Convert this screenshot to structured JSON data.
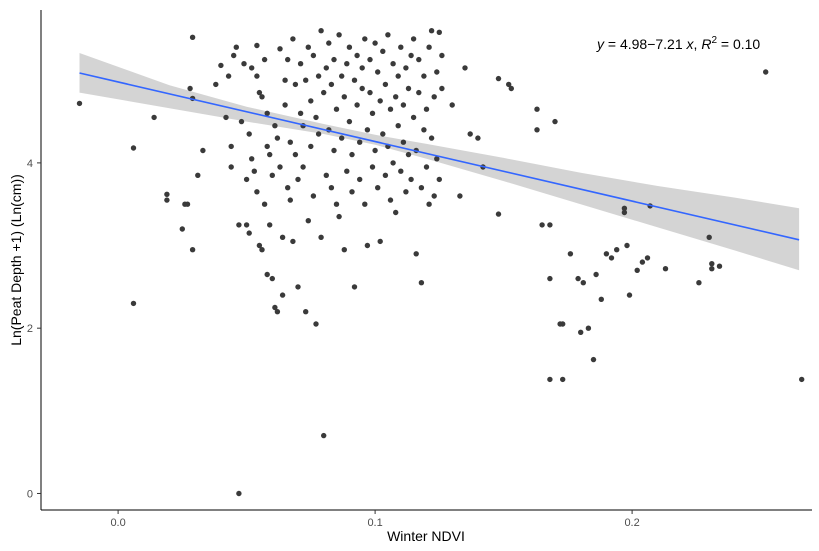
{
  "chart_data": {
    "type": "scatter",
    "xlabel": "Winter NDVI",
    "ylabel": "Ln(Peat Depth +1) (Ln(cm))",
    "xlim": [
      -0.03,
      0.27
    ],
    "ylim": [
      -0.2,
      5.85
    ],
    "x_ticks": [
      0.0,
      0.1,
      0.2
    ],
    "x_tick_labels": [
      "0.0",
      "0.1",
      "0.2"
    ],
    "y_ticks": [
      0,
      2,
      4
    ],
    "y_tick_labels": [
      "0",
      "2",
      "4"
    ],
    "grid": false,
    "annotation": {
      "y_symbol": "y",
      "equation_text": " = 4.98−7.21 ",
      "x_symbol": "x",
      "sep": ", ",
      "r_symbol": "R",
      "r_exponent": "2",
      "r2_text": " = 0.10"
    },
    "regression": {
      "intercept": 4.98,
      "slope": -7.21,
      "x_range": [
        -0.015,
        0.265
      ]
    },
    "confidence_band": [
      {
        "x": -0.015,
        "lo": 4.85,
        "hi": 5.33
      },
      {
        "x": 0.02,
        "lo": 4.66,
        "hi": 4.94
      },
      {
        "x": 0.05,
        "lo": 4.5,
        "hi": 4.68
      },
      {
        "x": 0.08,
        "lo": 4.35,
        "hi": 4.47
      },
      {
        "x": 0.1,
        "lo": 4.22,
        "hi": 4.34
      },
      {
        "x": 0.12,
        "lo": 4.05,
        "hi": 4.23
      },
      {
        "x": 0.15,
        "lo": 3.78,
        "hi": 4.06
      },
      {
        "x": 0.18,
        "lo": 3.5,
        "hi": 3.88
      },
      {
        "x": 0.21,
        "lo": 3.22,
        "hi": 3.72
      },
      {
        "x": 0.24,
        "lo": 2.94,
        "hi": 3.58
      },
      {
        "x": 0.265,
        "lo": 2.7,
        "hi": 3.45
      }
    ],
    "colors": {
      "points": "#3a3a3a",
      "line": "#3366ff",
      "band": "#cccccc",
      "axis": "#000000"
    },
    "points": [
      [
        -0.015,
        4.72
      ],
      [
        0.006,
        2.3
      ],
      [
        0.006,
        4.18
      ],
      [
        0.014,
        4.55
      ],
      [
        0.019,
        3.62
      ],
      [
        0.019,
        3.55
      ],
      [
        0.025,
        3.2
      ],
      [
        0.026,
        3.5
      ],
      [
        0.027,
        3.5
      ],
      [
        0.028,
        4.9
      ],
      [
        0.029,
        2.95
      ],
      [
        0.029,
        4.78
      ],
      [
        0.029,
        5.52
      ],
      [
        0.031,
        3.85
      ],
      [
        0.033,
        4.15
      ],
      [
        0.038,
        4.95
      ],
      [
        0.04,
        5.18
      ],
      [
        0.042,
        4.55
      ],
      [
        0.043,
        5.05
      ],
      [
        0.044,
        4.2
      ],
      [
        0.044,
        3.95
      ],
      [
        0.045,
        5.3
      ],
      [
        0.046,
        5.4
      ],
      [
        0.047,
        3.25
      ],
      [
        0.047,
        0.0
      ],
      [
        0.048,
        4.5
      ],
      [
        0.049,
        5.2
      ],
      [
        0.05,
        3.8
      ],
      [
        0.05,
        3.25
      ],
      [
        0.051,
        4.35
      ],
      [
        0.051,
        3.15
      ],
      [
        0.052,
        5.15
      ],
      [
        0.052,
        4.05
      ],
      [
        0.053,
        3.9
      ],
      [
        0.054,
        5.05
      ],
      [
        0.054,
        5.42
      ],
      [
        0.054,
        3.65
      ],
      [
        0.055,
        4.85
      ],
      [
        0.055,
        3.0
      ],
      [
        0.056,
        4.8
      ],
      [
        0.056,
        2.95
      ],
      [
        0.057,
        5.25
      ],
      [
        0.057,
        3.5
      ],
      [
        0.058,
        4.6
      ],
      [
        0.058,
        4.2
      ],
      [
        0.058,
        2.65
      ],
      [
        0.059,
        3.25
      ],
      [
        0.059,
        4.1
      ],
      [
        0.06,
        2.6
      ],
      [
        0.06,
        3.85
      ],
      [
        0.061,
        2.25
      ],
      [
        0.061,
        4.45
      ],
      [
        0.062,
        4.3
      ],
      [
        0.062,
        2.2
      ],
      [
        0.063,
        3.95
      ],
      [
        0.063,
        5.38
      ],
      [
        0.064,
        3.1
      ],
      [
        0.064,
        2.4
      ],
      [
        0.065,
        4.7
      ],
      [
        0.065,
        5.0
      ],
      [
        0.066,
        5.25
      ],
      [
        0.066,
        3.7
      ],
      [
        0.067,
        4.25
      ],
      [
        0.067,
        3.55
      ],
      [
        0.068,
        5.5
      ],
      [
        0.068,
        3.05
      ],
      [
        0.069,
        4.1
      ],
      [
        0.069,
        4.95
      ],
      [
        0.07,
        3.8
      ],
      [
        0.07,
        2.5
      ],
      [
        0.071,
        5.2
      ],
      [
        0.071,
        4.6
      ],
      [
        0.072,
        3.95
      ],
      [
        0.072,
        4.45
      ],
      [
        0.073,
        5.0
      ],
      [
        0.073,
        2.2
      ],
      [
        0.074,
        5.4
      ],
      [
        0.074,
        3.3
      ],
      [
        0.075,
        4.75
      ],
      [
        0.075,
        4.2
      ],
      [
        0.076,
        5.3
      ],
      [
        0.076,
        3.6
      ],
      [
        0.077,
        2.05
      ],
      [
        0.077,
        4.55
      ],
      [
        0.078,
        5.05
      ],
      [
        0.078,
        4.35
      ],
      [
        0.079,
        5.6
      ],
      [
        0.079,
        3.1
      ],
      [
        0.08,
        0.7
      ],
      [
        0.08,
        4.85
      ],
      [
        0.081,
        5.15
      ],
      [
        0.081,
        3.85
      ],
      [
        0.082,
        4.4
      ],
      [
        0.082,
        5.45
      ],
      [
        0.083,
        3.7
      ],
      [
        0.083,
        4.95
      ],
      [
        0.084,
        4.15
      ],
      [
        0.084,
        5.25
      ],
      [
        0.085,
        3.5
      ],
      [
        0.085,
        4.65
      ],
      [
        0.086,
        5.55
      ],
      [
        0.086,
        3.35
      ],
      [
        0.087,
        4.3
      ],
      [
        0.087,
        5.05
      ],
      [
        0.088,
        2.95
      ],
      [
        0.088,
        4.8
      ],
      [
        0.089,
        5.2
      ],
      [
        0.089,
        3.9
      ],
      [
        0.09,
        4.5
      ],
      [
        0.09,
        5.4
      ],
      [
        0.091,
        3.65
      ],
      [
        0.091,
        4.1
      ],
      [
        0.092,
        5.0
      ],
      [
        0.092,
        2.5
      ],
      [
        0.093,
        4.7
      ],
      [
        0.093,
        5.3
      ],
      [
        0.094,
        3.8
      ],
      [
        0.094,
        4.25
      ],
      [
        0.095,
        5.15
      ],
      [
        0.095,
        4.9
      ],
      [
        0.096,
        3.5
      ],
      [
        0.096,
        5.5
      ],
      [
        0.097,
        4.4
      ],
      [
        0.097,
        3.0
      ],
      [
        0.098,
        4.85
      ],
      [
        0.098,
        5.25
      ],
      [
        0.099,
        3.95
      ],
      [
        0.099,
        4.6
      ],
      [
        0.1,
        5.45
      ],
      [
        0.1,
        4.15
      ],
      [
        0.101,
        3.7
      ],
      [
        0.101,
        5.1
      ],
      [
        0.102,
        4.75
      ],
      [
        0.102,
        3.05
      ],
      [
        0.103,
        5.35
      ],
      [
        0.103,
        4.35
      ],
      [
        0.104,
        3.85
      ],
      [
        0.104,
        4.95
      ],
      [
        0.105,
        5.55
      ],
      [
        0.105,
        4.2
      ],
      [
        0.106,
        3.55
      ],
      [
        0.106,
        4.65
      ],
      [
        0.107,
        5.2
      ],
      [
        0.107,
        4.0
      ],
      [
        0.108,
        3.4
      ],
      [
        0.108,
        4.8
      ],
      [
        0.109,
        5.05
      ],
      [
        0.109,
        4.45
      ],
      [
        0.11,
        3.9
      ],
      [
        0.11,
        5.4
      ],
      [
        0.111,
        4.25
      ],
      [
        0.111,
        4.7
      ],
      [
        0.112,
        3.65
      ],
      [
        0.112,
        5.15
      ],
      [
        0.113,
        4.1
      ],
      [
        0.113,
        4.9
      ],
      [
        0.114,
        5.3
      ],
      [
        0.114,
        3.8
      ],
      [
        0.115,
        4.55
      ],
      [
        0.115,
        5.5
      ],
      [
        0.116,
        4.15
      ],
      [
        0.116,
        2.9
      ],
      [
        0.117,
        4.85
      ],
      [
        0.117,
        5.25
      ],
      [
        0.118,
        3.7
      ],
      [
        0.118,
        2.55
      ],
      [
        0.119,
        4.4
      ],
      [
        0.119,
        5.05
      ],
      [
        0.12,
        3.95
      ],
      [
        0.12,
        4.65
      ],
      [
        0.121,
        5.4
      ],
      [
        0.121,
        3.5
      ],
      [
        0.122,
        4.3
      ],
      [
        0.122,
        5.6
      ],
      [
        0.123,
        3.6
      ],
      [
        0.123,
        4.8
      ],
      [
        0.124,
        5.1
      ],
      [
        0.124,
        4.05
      ],
      [
        0.125,
        5.58
      ],
      [
        0.125,
        3.8
      ],
      [
        0.126,
        4.9
      ],
      [
        0.126,
        5.3
      ],
      [
        0.13,
        4.7
      ],
      [
        0.133,
        3.6
      ],
      [
        0.135,
        5.15
      ],
      [
        0.137,
        4.35
      ],
      [
        0.14,
        4.3
      ],
      [
        0.142,
        3.95
      ],
      [
        0.148,
        3.38
      ],
      [
        0.148,
        5.02
      ],
      [
        0.152,
        4.95
      ],
      [
        0.153,
        4.9
      ],
      [
        0.163,
        4.65
      ],
      [
        0.163,
        4.4
      ],
      [
        0.165,
        3.25
      ],
      [
        0.168,
        3.25
      ],
      [
        0.168,
        2.6
      ],
      [
        0.168,
        1.38
      ],
      [
        0.17,
        4.5
      ],
      [
        0.172,
        2.05
      ],
      [
        0.173,
        2.05
      ],
      [
        0.173,
        1.38
      ],
      [
        0.176,
        2.9
      ],
      [
        0.179,
        2.6
      ],
      [
        0.18,
        1.95
      ],
      [
        0.181,
        2.55
      ],
      [
        0.183,
        2.0
      ],
      [
        0.185,
        1.62
      ],
      [
        0.186,
        2.65
      ],
      [
        0.188,
        2.35
      ],
      [
        0.19,
        2.9
      ],
      [
        0.192,
        2.85
      ],
      [
        0.194,
        2.95
      ],
      [
        0.197,
        3.45
      ],
      [
        0.197,
        3.4
      ],
      [
        0.198,
        3.0
      ],
      [
        0.199,
        2.4
      ],
      [
        0.202,
        2.7
      ],
      [
        0.204,
        2.8
      ],
      [
        0.206,
        2.85
      ],
      [
        0.207,
        3.48
      ],
      [
        0.213,
        2.72
      ],
      [
        0.226,
        2.55
      ],
      [
        0.23,
        3.1
      ],
      [
        0.231,
        2.78
      ],
      [
        0.231,
        2.72
      ],
      [
        0.234,
        2.75
      ],
      [
        0.252,
        5.1
      ],
      [
        0.266,
        1.38
      ]
    ]
  }
}
